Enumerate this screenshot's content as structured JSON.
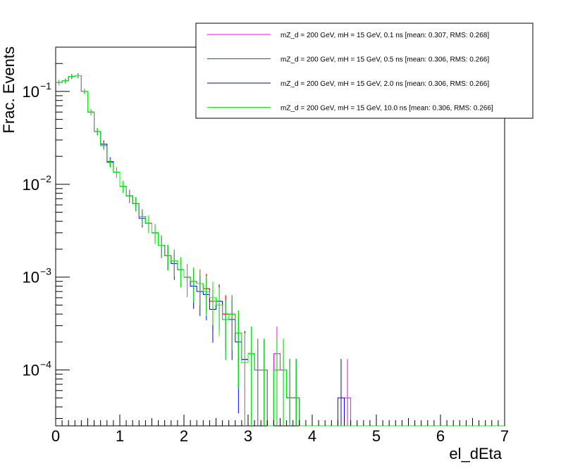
{
  "chart_data": {
    "type": "line",
    "style": "step-histogram",
    "xlabel": "el_dEta",
    "ylabel": "Frac. Events",
    "xlim": [
      0,
      7
    ],
    "ylim": [
      2.5e-05,
      0.3
    ],
    "yscale": "log",
    "grid": false,
    "legend_position": "top-right",
    "x_ticks": [
      "0",
      "1",
      "2",
      "3",
      "4",
      "5",
      "6",
      "7"
    ],
    "y_ticks": [
      {
        "base": "10",
        "exp": "−1",
        "value": 0.1
      },
      {
        "base": "10",
        "exp": "−2",
        "value": 0.01
      },
      {
        "base": "10",
        "exp": "−3",
        "value": 0.001
      },
      {
        "base": "10",
        "exp": "−4",
        "value": 0.0001
      }
    ],
    "bin_width": 0.1,
    "series": [
      {
        "name": "mZ_d = 200 GeV, mH = 15 GeV, 0.1 ns [mean: 0.307, RMS: 0.268]",
        "color": "#ff00ff",
        "values": [
          0.125,
          0.13,
          0.145,
          0.148,
          0.1,
          0.06,
          0.037,
          0.026,
          0.0175,
          0.0135,
          0.0095,
          0.0075,
          0.0062,
          0.0045,
          0.0038,
          0.003,
          0.0022,
          0.0017,
          0.0015,
          0.0012,
          0.001,
          0.0009,
          0.00085,
          0.00075,
          0.00055,
          0.00055,
          0.0004,
          0.0004,
          0.00025,
          0.00013,
          0.00015,
          0.0001,
          0.0001,
          0,
          0.00015,
          0.0001,
          5e-05,
          5e-05,
          0,
          0,
          0,
          0,
          0,
          0,
          0,
          5e-05,
          0,
          0,
          0,
          0,
          0,
          0,
          0,
          0,
          0,
          0,
          0,
          0,
          0,
          0,
          0,
          0,
          0,
          0,
          0,
          0,
          0,
          0,
          0,
          0
        ]
      },
      {
        "name": "mZ_d = 200 GeV, mH = 15 GeV, 0.5 ns [mean: 0.306, RMS: 0.266]",
        "color": "#ff0000",
        "values": [
          0.125,
          0.13,
          0.145,
          0.148,
          0.1,
          0.06,
          0.037,
          0.027,
          0.0175,
          0.0135,
          0.0095,
          0.0075,
          0.0062,
          0.0045,
          0.0038,
          0.003,
          0.0022,
          0.0017,
          0.0015,
          0.0012,
          0.001,
          0.0009,
          0.00085,
          0.00075,
          0.00055,
          0.00055,
          0.0004,
          0.0004,
          0.00025,
          0.00013,
          0.00015,
          0.0001,
          0.0001,
          0,
          0.0001,
          0.0001,
          5e-05,
          5e-05,
          0,
          0,
          0,
          0,
          0,
          0,
          0,
          0,
          0,
          0,
          0,
          0,
          0,
          0,
          0,
          0,
          0,
          0,
          0,
          0,
          0,
          0,
          0,
          0,
          0,
          0,
          0,
          0,
          0,
          0,
          0,
          0
        ]
      },
      {
        "name": "mZ_d = 200 GeV, mH = 15 GeV, 2.0 ns [mean: 0.306, RMS: 0.266]",
        "color": "#0000ff",
        "values": [
          0.125,
          0.13,
          0.145,
          0.148,
          0.1,
          0.06,
          0.037,
          0.027,
          0.0175,
          0.0135,
          0.0095,
          0.0075,
          0.0062,
          0.0043,
          0.0038,
          0.003,
          0.0022,
          0.0017,
          0.0014,
          0.0012,
          0.001,
          0.0008,
          0.0007,
          0.00065,
          0.00045,
          0.00055,
          0.00035,
          0.00035,
          0.0002,
          0.00013,
          0.00015,
          0.0001,
          0.0001,
          0,
          0.0001,
          0.0001,
          5e-05,
          5e-05,
          0,
          0,
          0,
          0,
          0,
          0,
          5e-05,
          0,
          0,
          0,
          0,
          0,
          0,
          0,
          0,
          0,
          0,
          0,
          0,
          0,
          0,
          0,
          0,
          0,
          0,
          0,
          0,
          0,
          0,
          0,
          0,
          0
        ]
      },
      {
        "name": "mZ_d = 200 GeV, mH = 15 GeV, 10.0 ns [mean: 0.306, RMS: 0.266]",
        "color": "#00ff00",
        "values": [
          0.125,
          0.13,
          0.145,
          0.148,
          0.1,
          0.06,
          0.037,
          0.026,
          0.017,
          0.0135,
          0.0095,
          0.0075,
          0.0062,
          0.0045,
          0.0038,
          0.003,
          0.0022,
          0.0017,
          0.0015,
          0.0012,
          0.001,
          0.0009,
          0.00085,
          0.0007,
          0.0006,
          0.0005,
          0.00035,
          0.0004,
          0.00025,
          0.00012,
          0.00015,
          0.0001,
          0.0001,
          0,
          0.0001,
          0.0001,
          5e-05,
          5e-05,
          0,
          0,
          0,
          0,
          0,
          0,
          0,
          0,
          0,
          0,
          0,
          0,
          0,
          0,
          0,
          0,
          0,
          0,
          0,
          0,
          0,
          0,
          0,
          0,
          0,
          0,
          0,
          0,
          0,
          0,
          0,
          0
        ]
      }
    ]
  }
}
